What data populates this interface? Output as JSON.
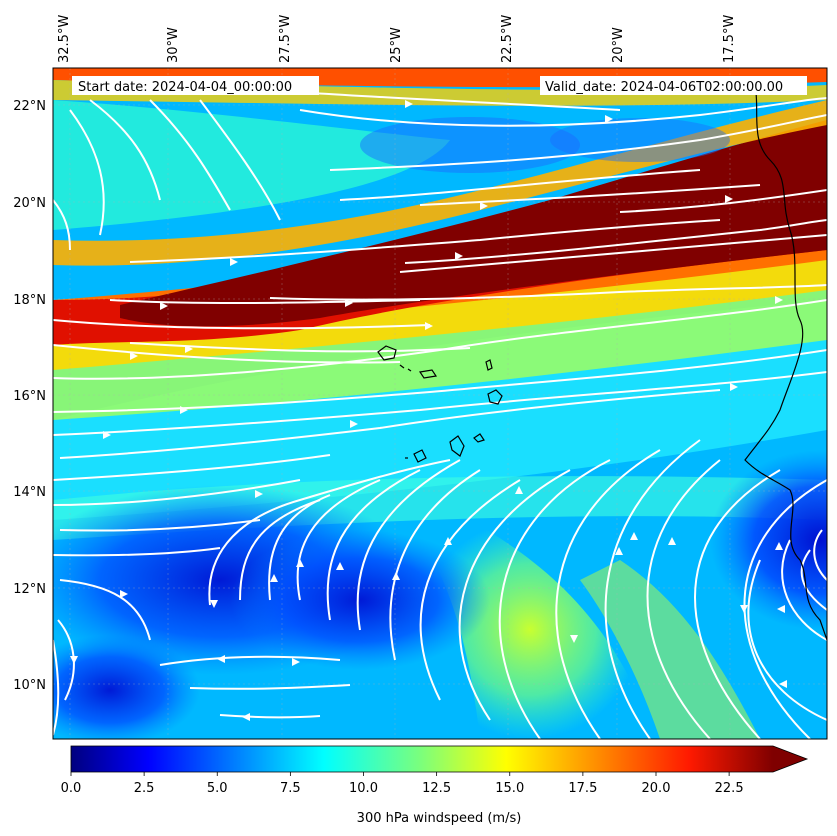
{
  "map": {
    "start_date_label": "Start date: 2024-04-04_00:00:00",
    "valid_date_label": "Valid_date: 2024-04-06T02:00:00.00",
    "lon_ticks": [
      "32.5°W",
      "30°W",
      "27.5°W",
      "25°W",
      "22.5°W",
      "20°W",
      "17.5°W"
    ],
    "lat_ticks": [
      "22°N",
      "20°N",
      "18°N",
      "16°N",
      "14°N",
      "12°N",
      "10°N"
    ],
    "field": "300 hPa windspeed",
    "streamline_color": "#ffffff",
    "coastline_color": "#000000"
  },
  "colorbar": {
    "label": "300 hPa windspeed (m/s)",
    "tick_labels": [
      "0.0",
      "2.5",
      "5.0",
      "7.5",
      "10.0",
      "12.5",
      "15.0",
      "17.5",
      "20.0",
      "22.5"
    ],
    "vmin": 0,
    "vmax": 24,
    "colormap": "jet",
    "extend": "max"
  }
}
